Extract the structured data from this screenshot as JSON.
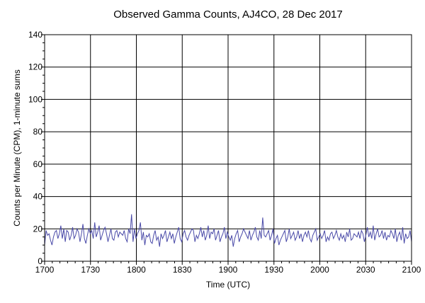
{
  "chart_data": {
    "type": "line",
    "title": "Observed Gamma Counts, AJ4CO, 28 Dec 2017",
    "xlabel": "Time (UTC)",
    "ylabel": "Counts per Minute (CPM), 1-minute sums",
    "x_ticks": [
      "1700",
      "1730",
      "1800",
      "1830",
      "1900",
      "1930",
      "2000",
      "2030",
      "2100"
    ],
    "y_ticks": [
      "0",
      "20",
      "40",
      "60",
      "80",
      "100",
      "120",
      "140"
    ],
    "x_range_minutes": [
      0,
      240
    ],
    "ylim": [
      0,
      140
    ],
    "grid": true,
    "line_color": "#4a4aa8",
    "series": [
      {
        "values": [
          10,
          19,
          16,
          17,
          13,
          10,
          15,
          18,
          19,
          14,
          17,
          22,
          14,
          20,
          12,
          19,
          18,
          13,
          16,
          21,
          14,
          16,
          20,
          18,
          12,
          17,
          23,
          14,
          11,
          16,
          20,
          17,
          19,
          14,
          24,
          15,
          18,
          22,
          13,
          16,
          19,
          21,
          17,
          12,
          16,
          20,
          14,
          13,
          18,
          19,
          15,
          18,
          17,
          16,
          19,
          14,
          12,
          20,
          17,
          29,
          12,
          20,
          14,
          17,
          19,
          24,
          13,
          18,
          10,
          16,
          15,
          17,
          12,
          11,
          16,
          19,
          13,
          15,
          9,
          17,
          14,
          16,
          19,
          12,
          15,
          18,
          14,
          17,
          11,
          15,
          18,
          21,
          14,
          12,
          17,
          19,
          15,
          13,
          16,
          18,
          20,
          19,
          12,
          16,
          14,
          17,
          21,
          15,
          19,
          13,
          16,
          22,
          14,
          18,
          17,
          20,
          13,
          16,
          19,
          12,
          15,
          17,
          21,
          14,
          18,
          15,
          13,
          16,
          9,
          14,
          17,
          19,
          12,
          15,
          17,
          20,
          18,
          16,
          14,
          19,
          13,
          16,
          18,
          21,
          15,
          13,
          19,
          14,
          27,
          16,
          15,
          17,
          19,
          13,
          16,
          20,
          11,
          14,
          16,
          10,
          13,
          15,
          17,
          19,
          12,
          15,
          20,
          14,
          16,
          18,
          13,
          15,
          19,
          14,
          17,
          12,
          16,
          18,
          15,
          19,
          14,
          12,
          16,
          18,
          20,
          13,
          15,
          17,
          14,
          16,
          19,
          12,
          15,
          13,
          17,
          18,
          14,
          16,
          19,
          15,
          13,
          17,
          14,
          16,
          12,
          18,
          15,
          20,
          13,
          14,
          17,
          16,
          15,
          18,
          14,
          19,
          17,
          12,
          16,
          21,
          15,
          18,
          14,
          22,
          13,
          17,
          20,
          15,
          16,
          19,
          14,
          18,
          13,
          16,
          15,
          19,
          17,
          14,
          20,
          12,
          16,
          18,
          13,
          21,
          11,
          17,
          14,
          15,
          19,
          12
        ]
      }
    ]
  }
}
